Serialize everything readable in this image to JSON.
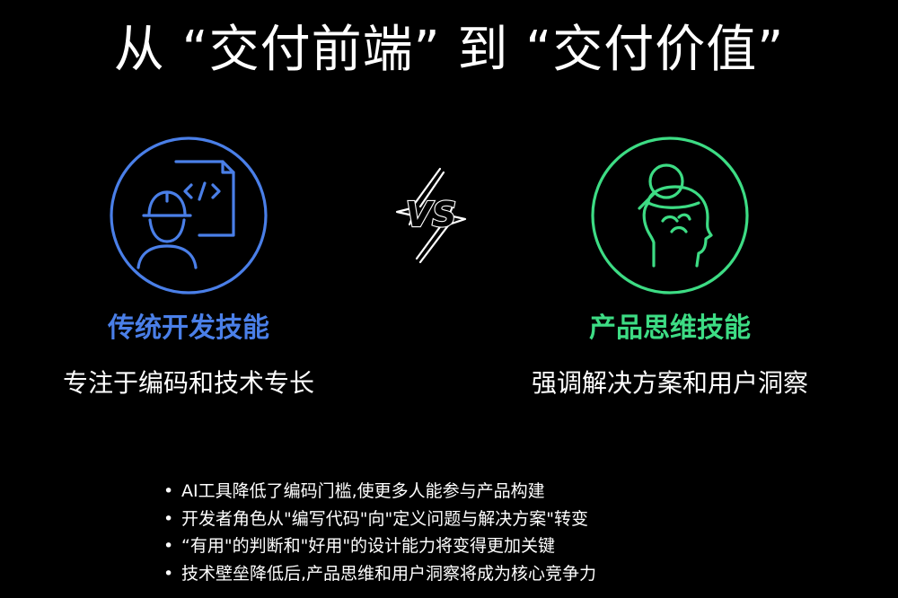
{
  "title": "从 “交付前端” 到 “交付价值”",
  "left": {
    "icon": "engineer-code-icon",
    "color": "#4a7fe8",
    "title": "传统开发技能",
    "desc": "专注于编码和技术专长"
  },
  "vs": {
    "icon": "vs-icon",
    "text": "VS"
  },
  "right": {
    "icon": "head-magnifier-icon",
    "color": "#3ddc84",
    "title": "产品思维技能",
    "desc": "强调解决方案和用户洞察"
  },
  "bullets": [
    "AI工具降低了编码门槛,使更多人能参与产品构建",
    "开发者角色从\"编写代码\"向\"定义问题与解决方案\"转变",
    "“有用\"的判断和\"好用\"的设计能力将变得更加关键",
    "技术壁垒降低后,产品思维和用户洞察将成为核心竞争力"
  ]
}
